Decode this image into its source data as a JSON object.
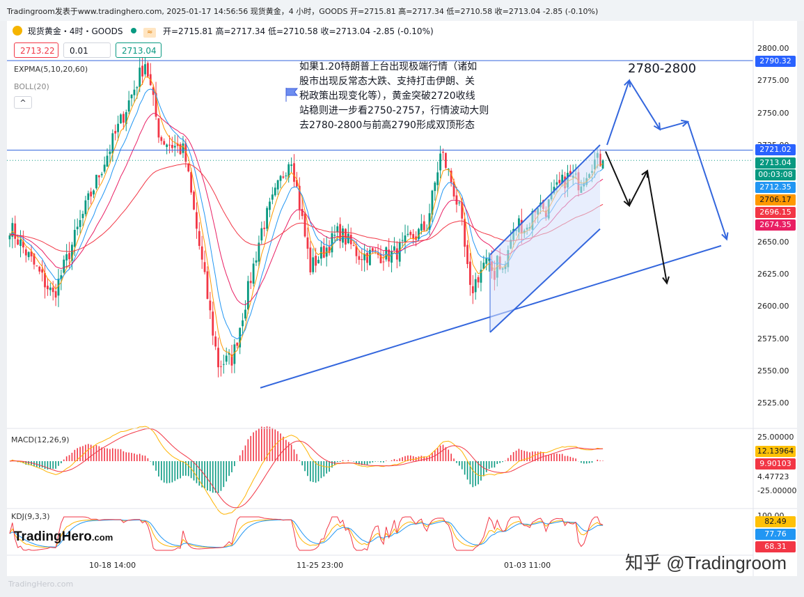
{
  "header": {
    "text": "Tradingroom发表于www.tradinghero.com, 2025-01-17 14:56:56 现货黄金，4 小时，GOODS 开=2715.81 高=2717.34 低=2710.58 收=2713.04 -2.85 (-0.10%)"
  },
  "legend": {
    "symbol": "现货黄金・4时・GOODS",
    "ohlc": "开=2715.81 高=2717.34 低=2710.58 收=2713.04 -2.85 (-0.10%)",
    "ohlc_color": "#089981",
    "bid": "2713.22",
    "spread": "0.01",
    "ask": "2713.04",
    "expma": "EXPMA(5,10,20,60)",
    "boll": "BOLL(20)",
    "collapse": "^"
  },
  "annotation": {
    "lines": [
      "如果1.20特朗普上台出现极端行情（诸如",
      "股市出现反常态大跌、支持打击伊朗、关",
      "税政策出现变化等），黄金突破2720收线",
      "站稳则进一步看2750-2757，行情波动大则",
      "去2780-2800与前高2790形成双顶形态"
    ],
    "target": "2780-2800"
  },
  "colors": {
    "up": "#089981",
    "down": "#f23645",
    "drawing": "#3366dd",
    "channel_fill": "#d5e0fb"
  },
  "price_axis": {
    "ticks": [
      "2800.00",
      "2775.00",
      "2750.00",
      "2725.00",
      "2650.00",
      "2625.00",
      "2600.00",
      "2575.00",
      "2550.00",
      "2525.00"
    ]
  },
  "price_tags": [
    {
      "text": "2790.32",
      "bg": "#2962ff"
    },
    {
      "text": "2721.02",
      "bg": "#2962ff"
    },
    {
      "text": "2713.04",
      "bg": "#089981"
    },
    {
      "text": "00:03:08",
      "bg": "#089981"
    },
    {
      "text": "2712.35",
      "bg": "#2196f3"
    },
    {
      "text": "2706.17",
      "bg": "#ff9800"
    },
    {
      "text": "2696.15",
      "bg": "#f23645"
    },
    {
      "text": "2674.35",
      "bg": "#e91e63"
    }
  ],
  "macd": {
    "label": "MACD(12,26,9)",
    "ticks": [
      "25.00000",
      "4.47723",
      "-25.00000"
    ],
    "tags": [
      {
        "text": "12.13964",
        "bg": "#ffc107",
        "fg": "#131722"
      },
      {
        "text": "9.90103",
        "bg": "#f23645",
        "fg": "#ffffff"
      }
    ]
  },
  "kdj": {
    "label": "KDJ(9,3,3)",
    "ticks": [
      "100.00"
    ],
    "tags": [
      {
        "text": "82.49",
        "bg": "#ffc107",
        "fg": "#131722"
      },
      {
        "text": "77.76",
        "bg": "#2196f3",
        "fg": "#ffffff"
      },
      {
        "text": "68.31",
        "bg": "#f23645",
        "fg": "#ffffff"
      }
    ]
  },
  "time_axis": {
    "labels": [
      "10-18 14:00",
      "11-25 23:00",
      "01-03 11:00"
    ]
  },
  "brand": {
    "main": "TradingHero",
    "suffix": ".com"
  },
  "watermark": "知乎 @Tradingroom",
  "footmark": "TradingHero.com",
  "chart_data": {
    "type": "candlestick",
    "symbol": "现货黄金",
    "timeframe": "4时",
    "ylim": [
      2525,
      2800
    ],
    "x_labels": [
      "10-18 14:00",
      "11-25 23:00",
      "01-03 11:00"
    ],
    "last": {
      "open": 2715.81,
      "high": 2717.34,
      "low": 2710.58,
      "close": 2713.04,
      "change": -2.85,
      "change_pct": -0.1
    },
    "swing_path": [
      {
        "t": 0,
        "p": 2662
      },
      {
        "t": 0.09,
        "p": 2608
      },
      {
        "t": 0.16,
        "p": 2680
      },
      {
        "t": 0.28,
        "p": 2790
      },
      {
        "t": 0.31,
        "p": 2730
      },
      {
        "t": 0.36,
        "p": 2720
      },
      {
        "t": 0.43,
        "p": 2555
      },
      {
        "t": 0.46,
        "p": 2560
      },
      {
        "t": 0.52,
        "p": 2660
      },
      {
        "t": 0.58,
        "p": 2718
      },
      {
        "t": 0.62,
        "p": 2630
      },
      {
        "t": 0.68,
        "p": 2658
      },
      {
        "t": 0.72,
        "p": 2640
      },
      {
        "t": 0.79,
        "p": 2640
      },
      {
        "t": 0.86,
        "p": 2662
      },
      {
        "t": 0.89,
        "p": 2720
      },
      {
        "t": 0.91,
        "p": 2698
      },
      {
        "t": 0.93,
        "p": 2670
      },
      {
        "t": 0.95,
        "p": 2610
      },
      {
        "t": 0.98,
        "p": 2635
      },
      {
        "t": 1.0,
        "p": 2625
      }
    ],
    "segments_after": [
      {
        "t": 0.0,
        "p": 2640
      },
      {
        "t": 0.06,
        "p": 2625
      },
      {
        "t": 0.12,
        "p": 2650
      },
      {
        "t": 0.2,
        "p": 2665
      },
      {
        "t": 0.28,
        "p": 2660
      },
      {
        "t": 0.38,
        "p": 2680
      },
      {
        "t": 0.46,
        "p": 2675
      },
      {
        "t": 0.56,
        "p": 2690
      },
      {
        "t": 0.66,
        "p": 2700
      },
      {
        "t": 0.78,
        "p": 2696
      },
      {
        "t": 0.9,
        "p": 2712
      },
      {
        "t": 1.0,
        "p": 2713
      }
    ],
    "lines": [
      {
        "name": "resistance",
        "price": 2790.32
      },
      {
        "name": "breakout",
        "price": 2721.02
      }
    ],
    "trendline": {
      "from": {
        "date": "2024-11-14",
        "price": 2537
      },
      "to": {
        "date": "projection",
        "price": 2647
      }
    },
    "channel": {
      "upper": [
        2640,
        2725
      ],
      "lower": [
        2580,
        2660
      ]
    },
    "scenario_up": [
      2725,
      2775,
      2737,
      2740,
      2745,
      2652
    ],
    "scenario_down": [
      2720,
      2678,
      2705,
      2618
    ],
    "target_zone": [
      2780,
      2800
    ]
  }
}
